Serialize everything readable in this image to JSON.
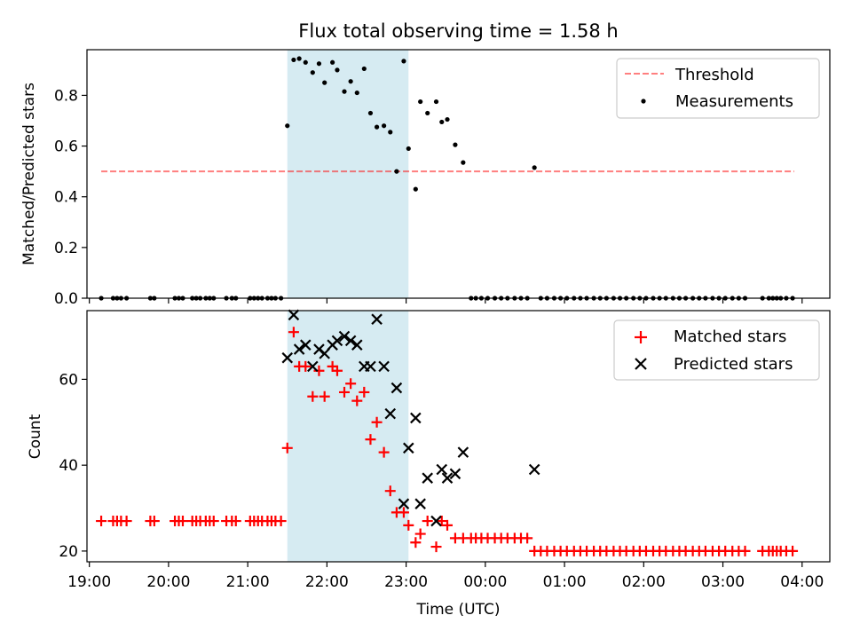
{
  "chart_data": [
    {
      "type": "scatter",
      "title": "Flux total observing time = 1.58 h",
      "xlabel": "",
      "ylabel": "Matched/Predicted stars",
      "ylim": [
        0,
        0.98
      ],
      "yticks": [
        0.0,
        0.2,
        0.4,
        0.6,
        0.8
      ],
      "ytick_labels": [
        "0.0",
        "0.2",
        "0.4",
        "0.6",
        "0.8"
      ],
      "grid": false,
      "legend_position": "top-right",
      "highlight_span": {
        "x0": 21.5,
        "x1": 23.03,
        "color": "#add8e6"
      },
      "series": [
        {
          "name": "Threshold",
          "kind": "dashed-line",
          "color": "#ff0000",
          "x": [
            19.15,
            27.9
          ],
          "y": [
            0.5,
            0.5
          ]
        },
        {
          "name": "Measurements",
          "kind": "dot",
          "color": "#000000",
          "x": [
            19.15,
            19.3,
            19.35,
            19.4,
            19.47,
            19.77,
            19.82,
            20.08,
            20.13,
            20.18,
            20.3,
            20.35,
            20.4,
            20.47,
            20.52,
            20.57,
            20.73,
            20.8,
            20.85,
            21.03,
            21.08,
            21.13,
            21.18,
            21.25,
            21.3,
            21.35,
            21.42,
            21.5,
            21.58,
            21.65,
            21.73,
            21.82,
            21.9,
            21.97,
            22.07,
            22.13,
            22.22,
            22.3,
            22.38,
            22.47,
            22.55,
            22.63,
            22.72,
            22.8,
            22.88,
            22.97,
            23.03,
            23.12,
            23.18,
            23.27,
            23.38,
            23.45,
            23.52,
            23.62,
            23.72,
            23.82,
            23.88,
            23.95,
            24.03,
            24.12,
            24.2,
            24.28,
            24.37,
            24.45,
            24.53,
            24.62,
            24.7,
            24.78,
            24.87,
            24.95,
            25.03,
            25.12,
            25.2,
            25.28,
            25.37,
            25.45,
            25.53,
            25.62,
            25.7,
            25.78,
            25.87,
            25.95,
            26.03,
            26.12,
            26.2,
            26.28,
            26.37,
            26.45,
            26.53,
            26.62,
            26.7,
            26.78,
            26.87,
            26.95,
            27.03,
            27.12,
            27.2,
            27.28,
            27.5,
            27.58,
            27.63,
            27.68,
            27.73,
            27.8,
            27.88
          ],
          "y": [
            0.0,
            0.0,
            0.0,
            0.0,
            0.0,
            0.0,
            0.0,
            0.0,
            0.0,
            0.0,
            0.0,
            0.0,
            0.0,
            0.0,
            0.0,
            0.0,
            0.0,
            0.0,
            0.0,
            0.0,
            0.0,
            0.0,
            0.0,
            0.0,
            0.0,
            0.0,
            0.0,
            0.68,
            0.94,
            0.945,
            0.93,
            0.89,
            0.925,
            0.85,
            0.93,
            0.9,
            0.815,
            0.855,
            0.81,
            0.905,
            0.73,
            0.675,
            0.68,
            0.655,
            0.5,
            0.935,
            0.59,
            0.43,
            0.775,
            0.73,
            0.775,
            0.695,
            0.705,
            0.605,
            0.535,
            0.0,
            0.0,
            0.0,
            0.0,
            0.0,
            0.0,
            0.0,
            0.0,
            0.0,
            0.0,
            0.515,
            0.0,
            0.0,
            0.0,
            0.0,
            0.0,
            0.0,
            0.0,
            0.0,
            0.0,
            0.0,
            0.0,
            0.0,
            0.0,
            0.0,
            0.0,
            0.0,
            0.0,
            0.0,
            0.0,
            0.0,
            0.0,
            0.0,
            0.0,
            0.0,
            0.0,
            0.0,
            0.0,
            0.0,
            0.0,
            0.0,
            0.0,
            0.0,
            0.0,
            0.0,
            0.0,
            0.0,
            0.0,
            0.0,
            0.0
          ]
        }
      ]
    },
    {
      "type": "scatter",
      "title": "",
      "xlabel": "Time (UTC)",
      "ylabel": "Count",
      "xlim": [
        18.97,
        28.35
      ],
      "ylim": [
        17.5,
        76
      ],
      "xticks": [
        19,
        20,
        21,
        22,
        23,
        24,
        25,
        26,
        27,
        28
      ],
      "xtick_labels": [
        "19:00",
        "20:00",
        "21:00",
        "22:00",
        "23:00",
        "00:00",
        "01:00",
        "02:00",
        "03:00",
        "04:00"
      ],
      "yticks": [
        20,
        40,
        60
      ],
      "ytick_labels": [
        "20",
        "40",
        "60"
      ],
      "grid": false,
      "legend_position": "top-right",
      "highlight_span": {
        "x0": 21.5,
        "x1": 23.03,
        "color": "#add8e6"
      },
      "series": [
        {
          "name": "Matched stars",
          "marker": "plus",
          "color": "#ff0000",
          "x": [
            19.15,
            19.3,
            19.35,
            19.4,
            19.47,
            19.77,
            19.82,
            20.08,
            20.13,
            20.18,
            20.3,
            20.35,
            20.4,
            20.47,
            20.52,
            20.57,
            20.73,
            20.8,
            20.85,
            21.03,
            21.08,
            21.13,
            21.18,
            21.25,
            21.3,
            21.35,
            21.42,
            21.5,
            21.58,
            21.65,
            21.73,
            21.82,
            21.9,
            21.97,
            22.07,
            22.13,
            22.22,
            22.3,
            22.38,
            22.47,
            22.55,
            22.63,
            22.72,
            22.8,
            22.88,
            22.97,
            23.03,
            23.12,
            23.18,
            23.27,
            23.38,
            23.45,
            23.52,
            23.62,
            23.72,
            23.82,
            23.88,
            23.95,
            24.03,
            24.12,
            24.2,
            24.28,
            24.37,
            24.45,
            24.53,
            24.62,
            24.7,
            24.78,
            24.87,
            24.95,
            25.03,
            25.12,
            25.2,
            25.28,
            25.37,
            25.45,
            25.53,
            25.62,
            25.7,
            25.78,
            25.87,
            25.95,
            26.03,
            26.12,
            26.2,
            26.28,
            26.37,
            26.45,
            26.53,
            26.62,
            26.7,
            26.78,
            26.87,
            26.95,
            27.03,
            27.12,
            27.2,
            27.28,
            27.5,
            27.58,
            27.63,
            27.68,
            27.73,
            27.8,
            27.88
          ],
          "y": [
            27,
            27,
            27,
            27,
            27,
            27,
            27,
            27,
            27,
            27,
            27,
            27,
            27,
            27,
            27,
            27,
            27,
            27,
            27,
            27,
            27,
            27,
            27,
            27,
            27,
            27,
            27,
            44,
            71,
            63,
            63,
            56,
            62,
            56,
            63,
            62,
            57,
            59,
            55,
            57,
            46,
            50,
            43,
            34,
            29,
            29,
            26,
            22,
            24,
            27,
            21,
            27,
            26,
            23,
            23,
            23,
            23,
            23,
            23,
            23,
            23,
            23,
            23,
            23,
            23,
            20,
            20,
            20,
            20,
            20,
            20,
            20,
            20,
            20,
            20,
            20,
            20,
            20,
            20,
            20,
            20,
            20,
            20,
            20,
            20,
            20,
            20,
            20,
            20,
            20,
            20,
            20,
            20,
            20,
            20,
            20,
            20,
            20,
            20,
            20,
            20,
            20,
            20,
            20,
            20
          ]
        },
        {
          "name": "Predicted stars",
          "marker": "x",
          "color": "#000000",
          "x": [
            21.5,
            21.58,
            21.65,
            21.73,
            21.82,
            21.9,
            21.97,
            22.07,
            22.13,
            22.22,
            22.3,
            22.38,
            22.47,
            22.55,
            22.63,
            22.72,
            22.8,
            22.88,
            22.97,
            23.03,
            23.12,
            23.18,
            23.27,
            23.38,
            23.45,
            23.52,
            23.62,
            23.72,
            24.62
          ],
          "y": [
            65,
            75,
            67,
            68,
            63,
            67,
            66,
            68,
            69,
            70,
            69,
            68,
            63,
            63,
            74,
            63,
            52,
            58,
            31,
            44,
            51,
            31,
            37,
            27,
            39,
            37,
            38,
            43,
            39
          ]
        }
      ]
    }
  ]
}
